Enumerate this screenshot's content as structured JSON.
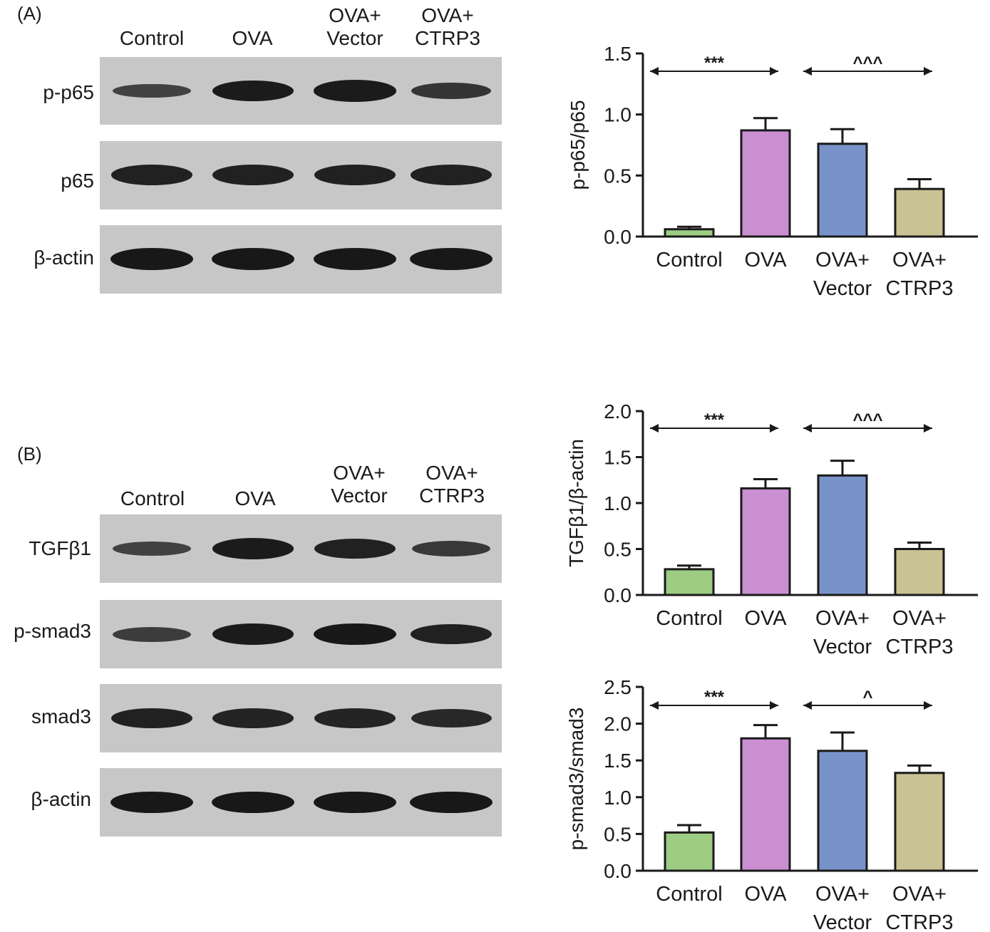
{
  "panels": [
    {
      "label": "(A)",
      "lanes": [
        "Control",
        "OVA",
        "OVA+\nVector",
        "OVA+\nCTRP3"
      ],
      "blot_rows": [
        {
          "label": "p-p65",
          "intensities": [
            0.45,
            0.9,
            0.92,
            0.6
          ]
        },
        {
          "label": "p65",
          "intensities": [
            0.85,
            0.85,
            0.85,
            0.85
          ]
        },
        {
          "label": "β-actin",
          "intensities": [
            0.95,
            0.95,
            0.95,
            0.95
          ]
        }
      ]
    },
    {
      "label": "(B)",
      "lanes": [
        "Control",
        "OVA",
        "OVA+\nVector",
        "OVA+\nCTRP3"
      ],
      "blot_rows": [
        {
          "label": "TGFβ1",
          "intensities": [
            0.45,
            0.9,
            0.85,
            0.55
          ]
        },
        {
          "label": "p-smad3",
          "intensities": [
            0.5,
            0.9,
            0.95,
            0.85
          ]
        },
        {
          "label": "smad3",
          "intensities": [
            0.85,
            0.8,
            0.8,
            0.75
          ]
        },
        {
          "label": "β-actin",
          "intensities": [
            0.95,
            0.95,
            0.95,
            0.95
          ]
        }
      ]
    }
  ],
  "series_colors": [
    "#9dcc83",
    "#c98fd0",
    "#7893c9",
    "#c8c294"
  ],
  "chart_data": [
    {
      "type": "bar",
      "panel": "A",
      "categories": [
        "Control",
        "OVA",
        "OVA+\nVector",
        "OVA+\nCTRP3"
      ],
      "values": [
        0.06,
        0.87,
        0.76,
        0.39
      ],
      "errors": [
        0.02,
        0.1,
        0.12,
        0.08
      ],
      "ylabel": "p-p65/p65",
      "ylim": [
        0,
        1.5
      ],
      "yticks": [
        "0.0",
        "0.5",
        "1.0",
        "1.5"
      ],
      "comparisons": [
        {
          "from": 0,
          "to": 1,
          "label": "***"
        },
        {
          "from": 2,
          "to": 3,
          "label": "^^^"
        }
      ]
    },
    {
      "type": "bar",
      "panel": "B",
      "categories": [
        "Control",
        "OVA",
        "OVA+\nVector",
        "OVA+\nCTRP3"
      ],
      "values": [
        0.28,
        1.16,
        1.3,
        0.5
      ],
      "errors": [
        0.04,
        0.1,
        0.16,
        0.07
      ],
      "ylabel": "TGFβ1/β-actin",
      "ylim": [
        0,
        2.0
      ],
      "yticks": [
        "0.0",
        "0.5",
        "1.0",
        "1.5",
        "2.0"
      ],
      "comparisons": [
        {
          "from": 0,
          "to": 1,
          "label": "***"
        },
        {
          "from": 2,
          "to": 3,
          "label": "^^^"
        }
      ]
    },
    {
      "type": "bar",
      "panel": "B",
      "categories": [
        "Control",
        "OVA",
        "OVA+\nVector",
        "OVA+\nCTRP3"
      ],
      "values": [
        0.52,
        1.8,
        1.63,
        1.33
      ],
      "errors": [
        0.1,
        0.18,
        0.25,
        0.1
      ],
      "ylabel": "p-smad3/smad3",
      "ylim": [
        0,
        2.5
      ],
      "yticks": [
        "0.0",
        "0.5",
        "1.0",
        "1.5",
        "2.0",
        "2.5"
      ],
      "comparisons": [
        {
          "from": 0,
          "to": 1,
          "label": "***"
        },
        {
          "from": 2,
          "to": 3,
          "label": "^"
        }
      ]
    }
  ]
}
